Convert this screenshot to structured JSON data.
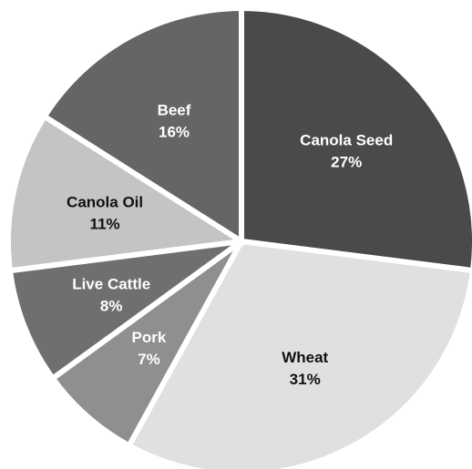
{
  "chart_data": {
    "type": "pie",
    "title": "",
    "slices": [
      {
        "label": "Canola Seed",
        "value": 27,
        "value_label": "27%",
        "color": "#4a4a4a",
        "text_color": "#ffffff"
      },
      {
        "label": "Wheat",
        "value": 31,
        "value_label": "31%",
        "color": "#e0e0e0",
        "text_color": "#111111"
      },
      {
        "label": "Pork",
        "value": 7,
        "value_label": "7%",
        "color": "#8f8f8f",
        "text_color": "#ffffff"
      },
      {
        "label": "Live Cattle",
        "value": 8,
        "value_label": "8%",
        "color": "#6f6f6f",
        "text_color": "#ffffff"
      },
      {
        "label": "Canola Oil",
        "value": 11,
        "value_label": "11%",
        "color": "#c4c4c4",
        "text_color": "#111111"
      },
      {
        "label": "Beef",
        "value": 16,
        "value_label": "16%",
        "color": "#656565",
        "text_color": "#ffffff"
      }
    ],
    "start_angle_deg": 0,
    "direction": "clockwise",
    "legend": "none",
    "labels_inside": true
  }
}
